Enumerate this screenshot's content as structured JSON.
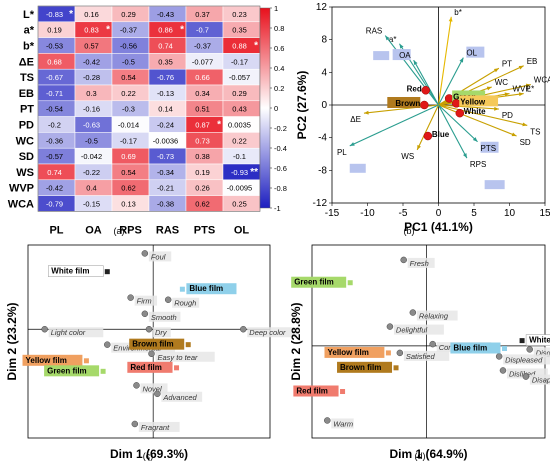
{
  "panel_labels": [
    "(a)",
    "(b)",
    "(c)",
    "(d)"
  ],
  "chart_data": [
    {
      "type": "heatmap",
      "row_labels": [
        "L*",
        "a*",
        "b*",
        "ΔE",
        "TS",
        "EB",
        "PT",
        "PD",
        "WC",
        "SD",
        "WS",
        "WVP",
        "WCA"
      ],
      "col_labels": [
        "PL",
        "OA",
        "RPS",
        "RAS",
        "PTS",
        "OL"
      ],
      "cells": [
        [
          "-0.83",
          "0.16",
          "0.29",
          "-0.43",
          "0.37",
          "0.23"
        ],
        [
          "0.19",
          "0.83",
          "-0.37",
          "0.86",
          "-0.7",
          "0.35"
        ],
        [
          "-0.53",
          "0.57",
          "-0.56",
          "0.74",
          "-0.37",
          "0.88"
        ],
        [
          "0.68",
          "-0.42",
          "-0.5",
          "0.35",
          "-0.077",
          "-0.17"
        ],
        [
          "-0.67",
          "-0.28",
          "0.54",
          "-0.76",
          "0.66",
          "-0.057"
        ],
        [
          "-0.71",
          "0.3",
          "0.22",
          "-0.13",
          "0.34",
          "0.29"
        ],
        [
          "-0.54",
          "-0.16",
          "-0.3",
          "0.14",
          "0.51",
          "0.43"
        ],
        [
          "-0.2",
          "-0.63",
          "-0.014",
          "-0.24",
          "0.87",
          "0.0035"
        ],
        [
          "-0.36",
          "-0.5",
          "-0.17",
          "-0.0036",
          "0.73",
          "0.22"
        ],
        [
          "-0.57",
          "-0.042",
          "0.69",
          "-0.73",
          "0.38",
          "-0.1"
        ],
        [
          "0.74",
          "-0.22",
          "0.54",
          "-0.34",
          "0.19",
          "-0.93"
        ],
        [
          "-0.42",
          "0.4",
          "0.62",
          "-0.21",
          "0.26",
          "-0.0095"
        ],
        [
          "-0.79",
          "-0.15",
          "0.13",
          "-0.38",
          "0.62",
          "0.25"
        ]
      ],
      "stars": [
        {
          "row": 0,
          "col": 0,
          "mark": "*"
        },
        {
          "row": 1,
          "col": 1,
          "mark": "*"
        },
        {
          "row": 1,
          "col": 3,
          "mark": "*"
        },
        {
          "row": 2,
          "col": 5,
          "mark": "*"
        },
        {
          "row": 7,
          "col": 4,
          "mark": "*"
        },
        {
          "row": 10,
          "col": 5,
          "mark": "**"
        }
      ],
      "colorbar_ticks": [
        "1",
        "0.8",
        "0.6",
        "0.4",
        "0.2",
        "0",
        "-0.2",
        "-0.4",
        "-0.6",
        "-0.8",
        "-1"
      ],
      "vmin": -1,
      "vmax": 1,
      "colors": {
        "neg": "#1c1ec0",
        "mid": "#ffffff",
        "pos": "#e8101c"
      }
    },
    {
      "type": "scatter",
      "xlabel": "PC1 (41.1%)",
      "ylabel": "PC2 (27.6%)",
      "xlim": [
        -15,
        15
      ],
      "ylim": [
        -12,
        12
      ],
      "xticks": [
        "-15",
        "-10",
        "-5",
        "0",
        "5",
        "10",
        "15"
      ],
      "yticks": [
        "12",
        "8",
        "4",
        "0",
        "-4",
        "-8",
        "-12"
      ],
      "loadings": [
        {
          "label": "b*",
          "x": 1.8,
          "y": 10.8,
          "color": "#e6b800"
        },
        {
          "label": "a*",
          "x": -5.5,
          "y": 7.5,
          "color": "#2a9d8f"
        },
        {
          "label": "RAS",
          "x": -7.5,
          "y": 8.5,
          "color": "#2a9d8f"
        },
        {
          "label": "OA",
          "x": -3.5,
          "y": 5.5,
          "color": "#2a9d8f"
        },
        {
          "label": "OL",
          "x": 3.5,
          "y": 5.8,
          "color": "#2a9d8f"
        },
        {
          "label": "PT",
          "x": 8.5,
          "y": 4.5,
          "color": "#c8a000"
        },
        {
          "label": "EB",
          "x": 12.0,
          "y": 4.8,
          "color": "#c8a000"
        },
        {
          "label": "WCA",
          "x": 13.0,
          "y": 2.5,
          "color": "#c8a000"
        },
        {
          "label": "WC",
          "x": 7.5,
          "y": 2.2,
          "color": "#c8a000"
        },
        {
          "label": "WVP",
          "x": 10.0,
          "y": 1.4,
          "color": "#c8a000"
        },
        {
          "label": "L*",
          "x": 12.0,
          "y": 1.4,
          "color": "#c8a000"
        },
        {
          "label": "PD",
          "x": 8.5,
          "y": -0.5,
          "color": "#c8a000"
        },
        {
          "label": "TS",
          "x": 12.5,
          "y": -2.5,
          "color": "#c8a000"
        },
        {
          "label": "SD",
          "x": 11.0,
          "y": -3.8,
          "color": "#c8a000"
        },
        {
          "label": "PTS",
          "x": 5.5,
          "y": -4.5,
          "color": "#2a9d8f"
        },
        {
          "label": "RPS",
          "x": 4.0,
          "y": -6.5,
          "color": "#2a9d8f"
        },
        {
          "label": "WS",
          "x": -3.0,
          "y": -5.5,
          "color": "#c8a000"
        },
        {
          "label": "ΔE",
          "x": -10.5,
          "y": -1.0,
          "color": "#c8a000"
        },
        {
          "label": "PL",
          "x": -12.5,
          "y": -5.0,
          "color": "#2a9d8f"
        }
      ],
      "samples": [
        {
          "label": "Red",
          "x": -1.8,
          "y": 1.8
        },
        {
          "label": "Brown",
          "x": -2.0,
          "y": 0.0
        },
        {
          "label": "Green",
          "x": 1.5,
          "y": 0.8
        },
        {
          "label": "Yellow",
          "x": 2.5,
          "y": 0.2
        },
        {
          "label": "White",
          "x": 3.0,
          "y": -1.0
        },
        {
          "label": "Blue",
          "x": -1.5,
          "y": -3.8
        }
      ]
    },
    {
      "type": "scatter",
      "xlabel": "Dim 1 (69.3%)",
      "ylabel": "Dim 2 (23.2%)",
      "films": [
        {
          "label": "White film",
          "x": -0.55,
          "y": 0.82,
          "color": "#222222"
        },
        {
          "label": "Blue film",
          "x": 0.35,
          "y": 0.57,
          "color": "#8fd0ea"
        },
        {
          "label": "Brown film",
          "x": 0.42,
          "y": -0.22,
          "color": "#b07a1e"
        },
        {
          "label": "Yellow film",
          "x": -0.8,
          "y": -0.45,
          "color": "#f0a060"
        },
        {
          "label": "Green film",
          "x": -0.6,
          "y": -0.6,
          "color": "#a6d96a"
        },
        {
          "label": "Red film",
          "x": 0.28,
          "y": -0.55,
          "color": "#f07b6e"
        }
      ],
      "attributes": [
        {
          "label": "Foul",
          "x": -0.1,
          "y": 1.08
        },
        {
          "label": "Firm",
          "x": -0.27,
          "y": 0.45
        },
        {
          "label": "Rough",
          "x": 0.18,
          "y": 0.42
        },
        {
          "label": "Smooth",
          "x": -0.1,
          "y": 0.22
        },
        {
          "label": "Light color",
          "x": -1.3,
          "y": 0.0
        },
        {
          "label": "Dry",
          "x": -0.05,
          "y": 0.0
        },
        {
          "label": "Deep color",
          "x": 1.08,
          "y": 0.0
        },
        {
          "label": "Environmental",
          "x": -0.55,
          "y": -0.22
        },
        {
          "label": "Easy to tear",
          "x": -0.02,
          "y": -0.35
        },
        {
          "label": "Novel",
          "x": -0.2,
          "y": -0.8
        },
        {
          "label": "Advanced",
          "x": 0.05,
          "y": -0.92
        },
        {
          "label": "Fragrant",
          "x": -0.22,
          "y": -1.35
        }
      ]
    },
    {
      "type": "scatter",
      "xlabel": "Dim 1 (64.9%)",
      "ylabel": "Dim 2 (28.8%)",
      "films": [
        {
          "label": "Green film",
          "x": -1.0,
          "y": 0.72,
          "color": "#a6d96a"
        },
        {
          "label": "White film",
          "x": 1.25,
          "y": 0.06,
          "color": "#222222"
        },
        {
          "label": "Blue film",
          "x": 1.02,
          "y": -0.03,
          "color": "#8fd0ea"
        },
        {
          "label": "Yellow film",
          "x": -0.5,
          "y": -0.08,
          "color": "#f0a060"
        },
        {
          "label": "Brown film",
          "x": -0.4,
          "y": -0.25,
          "color": "#b07a1e"
        },
        {
          "label": "Red film",
          "x": -1.1,
          "y": -0.52,
          "color": "#f07b6e"
        }
      ],
      "attributes": [
        {
          "label": "Fresh",
          "x": -0.3,
          "y": 0.98
        },
        {
          "label": "Relaxing",
          "x": -0.18,
          "y": 0.38
        },
        {
          "label": "Delightful",
          "x": -0.48,
          "y": 0.22
        },
        {
          "label": "Comfortable",
          "x": 0.08,
          "y": 0.02
        },
        {
          "label": "Satisfied",
          "x": -0.35,
          "y": -0.08
        },
        {
          "label": "Disgusted",
          "x": 1.35,
          "y": -0.04
        },
        {
          "label": "Displeased",
          "x": 0.95,
          "y": -0.12
        },
        {
          "label": "Disliked",
          "x": 1.0,
          "y": -0.28
        },
        {
          "label": "Disappointed",
          "x": 1.3,
          "y": -0.35
        },
        {
          "label": "Warm",
          "x": -1.3,
          "y": -0.85
        }
      ]
    }
  ]
}
